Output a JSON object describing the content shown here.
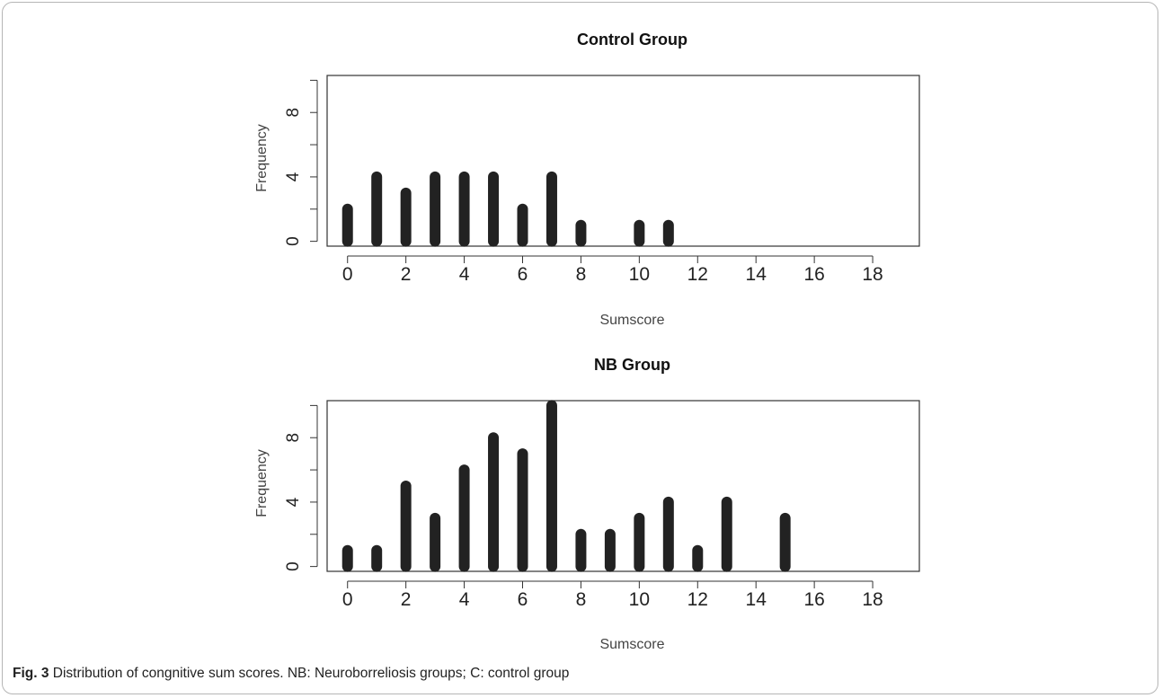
{
  "figure": {
    "label": "Fig. 3",
    "caption": "Distribution of congnitive sum scores. NB: Neuroborreliosis groups; C: control group"
  },
  "chart_data": [
    {
      "type": "bar",
      "title": "Control Group",
      "xlabel": "Sumscore",
      "ylabel": "Frequency",
      "x": [
        0,
        1,
        2,
        3,
        4,
        5,
        6,
        7,
        8,
        10,
        11
      ],
      "values": [
        2,
        4,
        3,
        4,
        4,
        4,
        2,
        4,
        1,
        1,
        1
      ],
      "xlim": [
        -0.7,
        19.6
      ],
      "ylim": [
        -0.3,
        10.3
      ],
      "xticks": [
        0,
        2,
        4,
        6,
        8,
        10,
        12,
        14,
        16,
        18
      ],
      "yticks": [
        0,
        4,
        8
      ],
      "bar_color": "#222222"
    },
    {
      "type": "bar",
      "title": "NB Group",
      "xlabel": "Sumscore",
      "ylabel": "Frequency",
      "x": [
        0,
        1,
        2,
        3,
        4,
        5,
        6,
        7,
        8,
        9,
        10,
        11,
        12,
        13,
        15
      ],
      "values": [
        1,
        1,
        5,
        3,
        6,
        8,
        7,
        10,
        2,
        2,
        3,
        4,
        1,
        4,
        3
      ],
      "xlim": [
        -0.7,
        19.6
      ],
      "ylim": [
        -0.3,
        10.3
      ],
      "xticks": [
        0,
        2,
        4,
        6,
        8,
        10,
        12,
        14,
        16,
        18
      ],
      "yticks": [
        0,
        4,
        8
      ],
      "bar_color": "#222222"
    }
  ]
}
